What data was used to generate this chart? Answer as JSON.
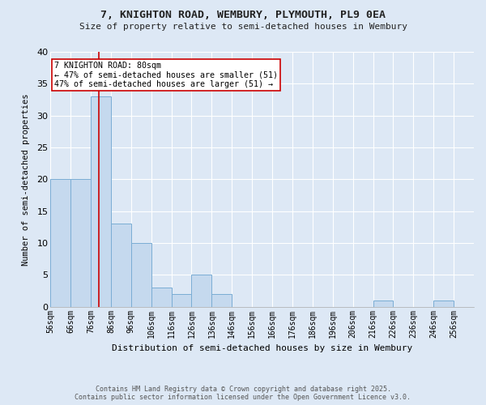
{
  "title1": "7, KNIGHTON ROAD, WEMBURY, PLYMOUTH, PL9 0EA",
  "title2": "Size of property relative to semi-detached houses in Wembury",
  "xlabel": "Distribution of semi-detached houses by size in Wembury",
  "ylabel": "Number of semi-detached properties",
  "bins": [
    "56sqm",
    "66sqm",
    "76sqm",
    "86sqm",
    "96sqm",
    "106sqm",
    "116sqm",
    "126sqm",
    "136sqm",
    "146sqm",
    "156sqm",
    "166sqm",
    "176sqm",
    "186sqm",
    "196sqm",
    "206sqm",
    "216sqm",
    "226sqm",
    "236sqm",
    "246sqm",
    "256sqm"
  ],
  "counts": [
    20,
    20,
    33,
    13,
    10,
    3,
    2,
    5,
    2,
    0,
    0,
    0,
    0,
    0,
    0,
    0,
    1,
    0,
    0,
    1,
    0
  ],
  "bar_color": "#c5d9ee",
  "bar_edge_color": "#7aadd4",
  "vline_x": 80,
  "vline_color": "#cc0000",
  "property_size": 80,
  "annotation_text": "7 KNIGHTON ROAD: 80sqm\n← 47% of semi-detached houses are smaller (51)\n47% of semi-detached houses are larger (51) →",
  "annotation_box_color": "#cc0000",
  "ylim": [
    0,
    40
  ],
  "yticks": [
    0,
    5,
    10,
    15,
    20,
    25,
    30,
    35,
    40
  ],
  "footnote": "Contains HM Land Registry data © Crown copyright and database right 2025.\nContains public sector information licensed under the Open Government Licence v3.0.",
  "bg_color": "#dde8f5",
  "plot_bg_color": "#dde8f5",
  "grid_color": "#ffffff"
}
